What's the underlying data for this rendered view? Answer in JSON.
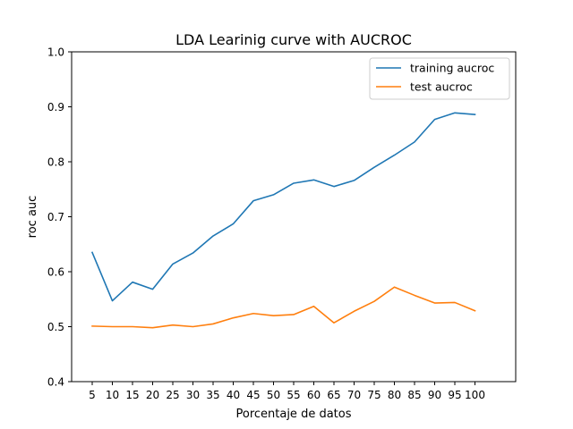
{
  "chart_data": {
    "type": "line",
    "title": "LDA Learinig curve with AUCROC",
    "xlabel": "Porcentaje de datos",
    "ylabel": "roc auc",
    "categories": [
      5,
      10,
      15,
      20,
      25,
      30,
      35,
      40,
      45,
      50,
      55,
      60,
      65,
      70,
      75,
      80,
      85,
      90,
      95,
      100
    ],
    "x_tick_labels": [
      "5",
      "10",
      "15",
      "20",
      "25",
      "30",
      "35",
      "40",
      "45",
      "50",
      "55",
      "60",
      "65",
      "70",
      "75",
      "80",
      "85",
      "90",
      "95",
      "100"
    ],
    "ylim": [
      0.4,
      1.0
    ],
    "y_ticks": [
      0.4,
      0.5,
      0.6,
      0.7,
      0.8,
      0.9,
      1.0
    ],
    "y_tick_labels": [
      "0.4",
      "0.5",
      "0.6",
      "0.7",
      "0.8",
      "0.9",
      "1.0"
    ],
    "grid": false,
    "legend_position": "top-right",
    "series": [
      {
        "name": "training aucroc",
        "color": "#1f77b4",
        "values": [
          0.635,
          0.547,
          0.581,
          0.568,
          0.614,
          0.634,
          0.665,
          0.687,
          0.729,
          0.74,
          0.761,
          0.767,
          0.755,
          0.766,
          0.79,
          0.812,
          0.836,
          0.877,
          0.889,
          0.886
        ]
      },
      {
        "name": "test aucroc",
        "color": "#ff7f0e",
        "values": [
          0.501,
          0.5,
          0.5,
          0.498,
          0.503,
          0.5,
          0.505,
          0.516,
          0.524,
          0.52,
          0.522,
          0.537,
          0.507,
          0.528,
          0.546,
          0.572,
          0.557,
          0.543,
          0.544,
          0.529
        ]
      }
    ]
  }
}
